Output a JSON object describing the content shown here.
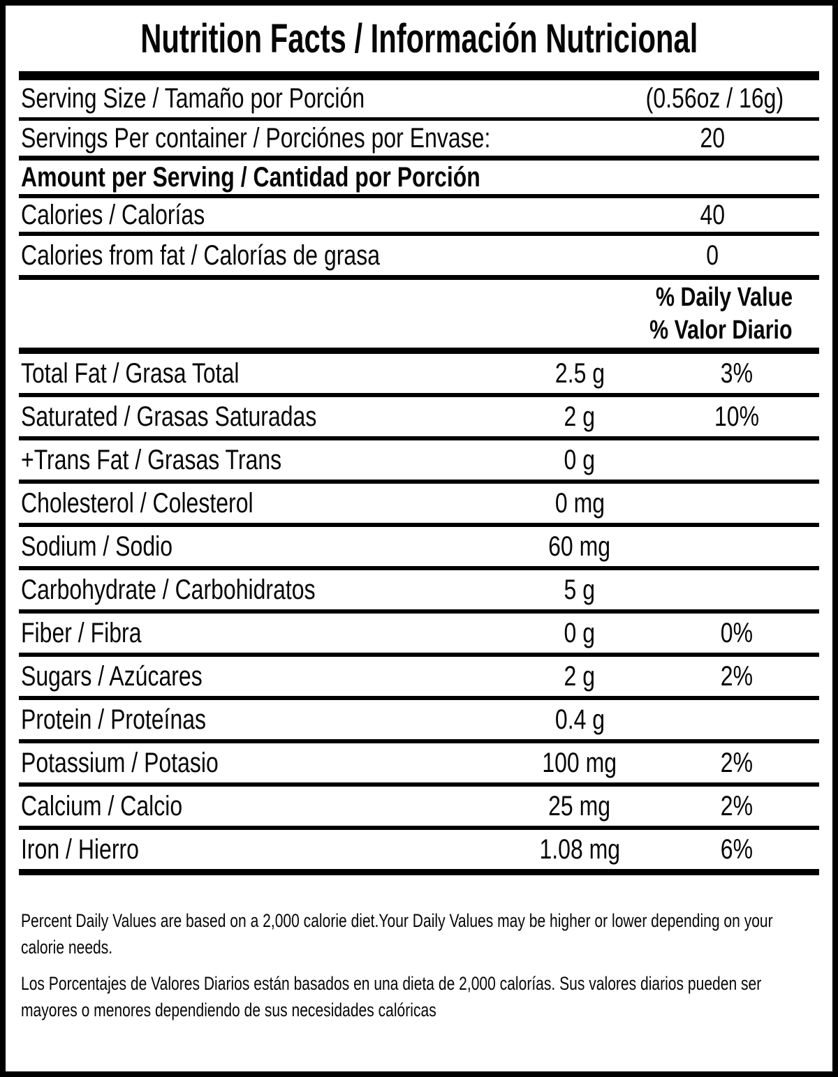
{
  "title": "Nutrition Facts / Información Nutricional",
  "colors": {
    "ink": "#000000",
    "background": "#ffffff"
  },
  "serving_rows": [
    {
      "label": "Serving Size / Tamaño por Porción",
      "value": "(0.56oz / 16g)"
    },
    {
      "label": "Servings Per container / Porciónes por Envase:",
      "value": "20"
    }
  ],
  "amount_header": "Amount per Serving / Cantidad por Porción",
  "calorie_rows": [
    {
      "label": "Calories / Calorías",
      "value": "40"
    },
    {
      "label": "Calories from fat / Calorías de grasa",
      "value": "0"
    }
  ],
  "daily_value_header": {
    "line1": "% Daily Value",
    "line2": "% Valor Diario"
  },
  "nutrient_rows": [
    {
      "label": "Total Fat / Grasa Total",
      "amount": "2.5 g",
      "dv": "3%"
    },
    {
      "label": "Saturated / Grasas Saturadas",
      "amount": "2 g",
      "dv": "10%"
    },
    {
      "label": "+Trans Fat / Grasas Trans",
      "amount": "0 g",
      "dv": ""
    },
    {
      "label": "Cholesterol / Colesterol",
      "amount": "0 mg",
      "dv": ""
    },
    {
      "label": "Sodium / Sodio",
      "amount": "60 mg",
      "dv": ""
    },
    {
      "label": "Carbohydrate / Carbohidratos",
      "amount": "5 g",
      "dv": ""
    },
    {
      "label": "Fiber / Fibra",
      "amount": "0 g",
      "dv": "0%"
    },
    {
      "label": "Sugars / Azúcares",
      "amount": "2 g",
      "dv": "2%"
    },
    {
      "label": "Protein / Proteínas",
      "amount": "0.4 g",
      "dv": ""
    },
    {
      "label": "Potassium / Potasio",
      "amount": "100 mg",
      "dv": "2%"
    },
    {
      "label": "Calcium / Calcio",
      "amount": "25 mg",
      "dv": "2%"
    },
    {
      "label": "Iron / Hierro",
      "amount": "1.08 mg",
      "dv": "6%"
    }
  ],
  "footnotes": {
    "english": [
      "Percent Daily Values are based on a 2,000 calorie diet.Your Daily Values may be higher or lower depending on your",
      "calorie needs."
    ],
    "spanish": [
      "Los Porcentajes de Valores Diarios están basados en una dieta de 2,000 calorías. Sus valores diarios pueden ser",
      "mayores o menores dependiendo de sus necesidades calóricas"
    ]
  }
}
